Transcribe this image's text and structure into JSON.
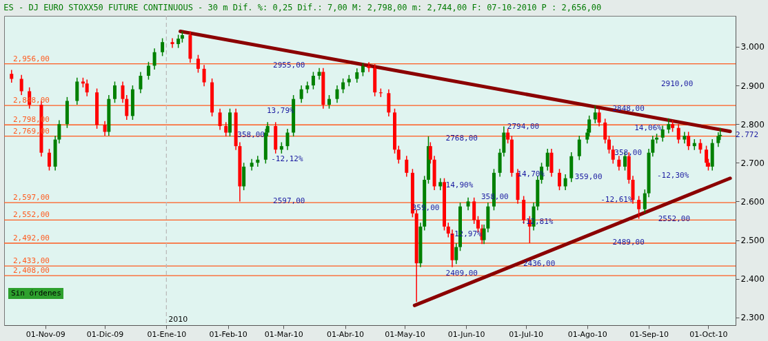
{
  "chart_data": {
    "type": "candlestick",
    "title": "ES - DJ EURO STOXX50 FUTURE CONTINUOUS -  30 m Dif. %: 0,25 Dif.: 7,00 M: 2,798,00 m: 2,744,00 F: 07-10-2010 P : 2,656,00",
    "x": [
      "2009-10-15",
      "2009-10-20",
      "2009-10-24",
      "2009-10-30",
      "2009-11-03",
      "2009-11-06",
      "2009-11-08",
      "2009-11-12",
      "2009-11-17",
      "2009-11-20",
      "2009-11-22",
      "2009-11-27",
      "2009-12-01",
      "2009-12-03",
      "2009-12-06",
      "2009-12-10",
      "2009-12-12",
      "2009-12-15",
      "2009-12-19",
      "2009-12-23",
      "2009-12-26",
      "2009-12-30",
      "2010-01-04",
      "2010-01-07",
      "2010-01-09",
      "2010-01-13",
      "2010-01-17",
      "2010-01-20",
      "2010-01-24",
      "2010-01-28",
      "2010-01-31",
      "2010-02-02",
      "2010-02-05",
      "2010-02-07",
      "2010-02-09",
      "2010-02-13",
      "2010-02-16",
      "2010-02-20",
      "2010-02-21",
      "2010-02-25",
      "2010-02-28",
      "2010-03-03",
      "2010-03-06",
      "2010-03-10",
      "2010-03-13",
      "2010-03-16",
      "2010-03-19",
      "2010-03-21",
      "2010-03-24",
      "2010-03-28",
      "2010-03-31",
      "2010-04-03",
      "2010-04-07",
      "2010-04-10",
      "2010-04-13",
      "2010-04-16",
      "2010-04-19",
      "2010-04-23",
      "2010-04-26",
      "2010-04-28",
      "2010-05-02",
      "2010-05-05",
      "2010-05-07",
      "2010-05-09",
      "2010-05-11",
      "2010-05-13",
      "2010-05-14",
      "2010-05-16",
      "2010-05-19",
      "2010-05-21",
      "2010-05-23",
      "2010-05-25",
      "2010-05-27",
      "2010-05-29",
      "2010-06-02",
      "2010-06-05",
      "2010-06-07",
      "2010-06-09",
      "2010-06-10",
      "2010-06-12",
      "2010-06-15",
      "2010-06-18",
      "2010-06-20",
      "2010-06-22",
      "2010-06-24",
      "2010-06-27",
      "2010-06-30",
      "2010-07-03",
      "2010-07-05",
      "2010-07-07",
      "2010-07-09",
      "2010-07-12",
      "2010-07-14",
      "2010-07-18",
      "2010-07-21",
      "2010-07-24",
      "2010-07-28",
      "2010-08-01",
      "2010-08-02",
      "2010-08-05",
      "2010-08-07",
      "2010-08-10",
      "2010-08-12",
      "2010-08-14",
      "2010-08-17",
      "2010-08-20",
      "2010-08-22",
      "2010-08-24",
      "2010-08-27",
      "2010-08-30",
      "2010-09-01",
      "2010-09-03",
      "2010-09-05",
      "2010-09-08",
      "2010-09-11",
      "2010-09-13",
      "2010-09-16",
      "2010-09-19",
      "2010-09-21",
      "2010-09-24",
      "2010-09-27",
      "2010-09-30",
      "2010-10-01",
      "2010-10-03",
      "2010-10-06",
      "2010-10-07"
    ],
    "ohlc": [
      [
        2930,
        2940,
        2907,
        2917
      ],
      [
        2917,
        2927,
        2875,
        2885
      ],
      [
        2885,
        2895,
        2840,
        2850
      ],
      [
        2850,
        2860,
        2716,
        2726
      ],
      [
        2726,
        2736,
        2680,
        2690
      ],
      [
        2690,
        2770,
        2680,
        2760
      ],
      [
        2760,
        2810,
        2750,
        2800
      ],
      [
        2800,
        2870,
        2790,
        2860
      ],
      [
        2860,
        2920,
        2850,
        2910
      ],
      [
        2910,
        2920,
        2895,
        2905
      ],
      [
        2905,
        2915,
        2872,
        2882
      ],
      [
        2882,
        2892,
        2788,
        2798
      ],
      [
        2798,
        2808,
        2770,
        2780
      ],
      [
        2780,
        2875,
        2770,
        2865
      ],
      [
        2865,
        2910,
        2855,
        2900
      ],
      [
        2900,
        2910,
        2855,
        2865
      ],
      [
        2865,
        2875,
        2811,
        2821
      ],
      [
        2821,
        2900,
        2811,
        2890
      ],
      [
        2890,
        2935,
        2880,
        2925
      ],
      [
        2925,
        2961,
        2915,
        2951
      ],
      [
        2951,
        2996,
        2941,
        2986
      ],
      [
        2986,
        3022,
        2976,
        3012
      ],
      [
        3012,
        3022,
        2997,
        3007
      ],
      [
        3007,
        3031,
        2997,
        3021
      ],
      [
        3021,
        3040,
        3011,
        3030
      ],
      [
        3030,
        3040,
        2959,
        2969
      ],
      [
        2969,
        2979,
        2933,
        2943
      ],
      [
        2943,
        2953,
        2898,
        2908
      ],
      [
        2908,
        2918,
        2820,
        2830
      ],
      [
        2830,
        2840,
        2785,
        2795
      ],
      [
        2795,
        2805,
        2768,
        2778
      ],
      [
        2778,
        2840,
        2768,
        2830
      ],
      [
        2830,
        2840,
        2733,
        2743
      ],
      [
        2743,
        2753,
        2600,
        2639
      ],
      [
        2639,
        2700,
        2629,
        2690
      ],
      [
        2690,
        2710,
        2680,
        2700
      ],
      [
        2700,
        2718,
        2690,
        2708
      ],
      [
        2708,
        2788,
        2698,
        2778
      ],
      [
        2778,
        2805,
        2768,
        2795
      ],
      [
        2795,
        2805,
        2724,
        2734
      ],
      [
        2734,
        2753,
        2724,
        2743
      ],
      [
        2743,
        2788,
        2733,
        2778
      ],
      [
        2778,
        2875,
        2768,
        2865
      ],
      [
        2865,
        2900,
        2855,
        2890
      ],
      [
        2890,
        2910,
        2880,
        2900
      ],
      [
        2900,
        2935,
        2890,
        2925
      ],
      [
        2925,
        2945,
        2915,
        2935
      ],
      [
        2935,
        2945,
        2840,
        2850
      ],
      [
        2850,
        2875,
        2840,
        2865
      ],
      [
        2865,
        2900,
        2855,
        2890
      ],
      [
        2890,
        2918,
        2880,
        2908
      ],
      [
        2908,
        2927,
        2898,
        2917
      ],
      [
        2917,
        2944,
        2907,
        2934
      ],
      [
        2934,
        2958,
        2924,
        2950
      ],
      [
        2950,
        2960,
        2935,
        2945
      ],
      [
        2945,
        2955,
        2872,
        2882
      ],
      [
        2882,
        2892,
        2870,
        2880
      ],
      [
        2880,
        2890,
        2820,
        2830
      ],
      [
        2830,
        2840,
        2724,
        2734
      ],
      [
        2734,
        2744,
        2698,
        2708
      ],
      [
        2708,
        2718,
        2664,
        2674
      ],
      [
        2674,
        2684,
        2559,
        2569
      ],
      [
        2569,
        2579,
        2340,
        2440
      ],
      [
        2440,
        2545,
        2430,
        2535
      ],
      [
        2535,
        2666,
        2525,
        2656
      ],
      [
        2656,
        2768,
        2646,
        2743
      ],
      [
        2743,
        2753,
        2698,
        2708
      ],
      [
        2708,
        2718,
        2629,
        2639
      ],
      [
        2639,
        2660,
        2629,
        2650
      ],
      [
        2650,
        2660,
        2525,
        2535
      ],
      [
        2535,
        2545,
        2507,
        2517
      ],
      [
        2517,
        2527,
        2430,
        2448
      ],
      [
        2448,
        2492,
        2438,
        2482
      ],
      [
        2482,
        2597,
        2472,
        2587
      ],
      [
        2587,
        2610,
        2577,
        2600
      ],
      [
        2600,
        2610,
        2542,
        2552
      ],
      [
        2552,
        2562,
        2520,
        2530
      ],
      [
        2530,
        2540,
        2490,
        2500
      ],
      [
        2500,
        2540,
        2490,
        2530
      ],
      [
        2530,
        2597,
        2520,
        2587
      ],
      [
        2587,
        2684,
        2577,
        2674
      ],
      [
        2674,
        2736,
        2664,
        2726
      ],
      [
        2726,
        2794,
        2716,
        2778
      ],
      [
        2778,
        2788,
        2750,
        2760
      ],
      [
        2760,
        2770,
        2664,
        2674
      ],
      [
        2674,
        2684,
        2594,
        2604
      ],
      [
        2604,
        2614,
        2542,
        2552
      ],
      [
        2552,
        2562,
        2492,
        2535
      ],
      [
        2535,
        2597,
        2525,
        2587
      ],
      [
        2587,
        2666,
        2577,
        2656
      ],
      [
        2656,
        2700,
        2646,
        2690
      ],
      [
        2690,
        2736,
        2680,
        2726
      ],
      [
        2726,
        2736,
        2664,
        2674
      ],
      [
        2674,
        2684,
        2629,
        2639
      ],
      [
        2639,
        2670,
        2629,
        2660
      ],
      [
        2660,
        2727,
        2650,
        2717
      ],
      [
        2717,
        2770,
        2707,
        2760
      ],
      [
        2760,
        2788,
        2750,
        2778
      ],
      [
        2778,
        2822,
        2768,
        2812
      ],
      [
        2812,
        2848,
        2802,
        2830
      ],
      [
        2830,
        2840,
        2794,
        2804
      ],
      [
        2804,
        2814,
        2750,
        2760
      ],
      [
        2760,
        2770,
        2724,
        2734
      ],
      [
        2734,
        2744,
        2698,
        2708
      ],
      [
        2708,
        2718,
        2680,
        2690
      ],
      [
        2690,
        2727,
        2680,
        2717
      ],
      [
        2717,
        2727,
        2646,
        2656
      ],
      [
        2656,
        2666,
        2594,
        2604
      ],
      [
        2604,
        2614,
        2555,
        2580
      ],
      [
        2580,
        2631,
        2570,
        2621
      ],
      [
        2621,
        2736,
        2611,
        2726
      ],
      [
        2726,
        2770,
        2716,
        2760
      ],
      [
        2760,
        2775,
        2750,
        2765
      ],
      [
        2765,
        2796,
        2755,
        2786
      ],
      [
        2786,
        2815,
        2776,
        2800
      ],
      [
        2800,
        2810,
        2780,
        2790
      ],
      [
        2790,
        2800,
        2750,
        2760
      ],
      [
        2760,
        2780,
        2750,
        2770
      ],
      [
        2770,
        2780,
        2733,
        2743
      ],
      [
        2743,
        2761,
        2733,
        2751
      ],
      [
        2751,
        2761,
        2724,
        2734
      ],
      [
        2734,
        2744,
        2690,
        2700
      ],
      [
        2700,
        2710,
        2680,
        2690
      ],
      [
        2690,
        2761,
        2680,
        2751
      ],
      [
        2751,
        2779,
        2741,
        2769
      ],
      [
        2769,
        2790,
        2759,
        2772
      ]
    ],
    "colors": [
      "#ff0000",
      "#ff0000",
      "#ff0000",
      "#ff0000",
      "#ff0000",
      "#008000",
      "#008000",
      "#008000",
      "#008000",
      "#ff0000",
      "#ff0000",
      "#ff0000",
      "#ff0000",
      "#008000",
      "#008000",
      "#ff0000",
      "#ff0000",
      "#008000",
      "#008000",
      "#008000",
      "#008000",
      "#008000",
      "#ff0000",
      "#008000",
      "#008000",
      "#ff0000",
      "#ff0000",
      "#ff0000",
      "#ff0000",
      "#ff0000",
      "#ff0000",
      "#008000",
      "#ff0000",
      "#ff0000",
      "#008000",
      "#008000",
      "#008000",
      "#008000",
      "#008000",
      "#ff0000",
      "#008000",
      "#008000",
      "#008000",
      "#008000",
      "#008000",
      "#008000",
      "#008000",
      "#ff0000",
      "#008000",
      "#008000",
      "#008000",
      "#008000",
      "#008000",
      "#008000",
      "#ff0000",
      "#ff0000",
      "#ff0000",
      "#ff0000",
      "#ff0000",
      "#ff0000",
      "#ff0000",
      "#ff0000",
      "#ff0000",
      "#008000",
      "#008000",
      "#008000",
      "#ff0000",
      "#ff0000",
      "#008000",
      "#ff0000",
      "#ff0000",
      "#ff0000",
      "#008000",
      "#008000",
      "#008000",
      "#ff0000",
      "#ff0000",
      "#ff0000",
      "#008000",
      "#008000",
      "#008000",
      "#008000",
      "#008000",
      "#ff0000",
      "#ff0000",
      "#ff0000",
      "#ff0000",
      "#ff0000",
      "#008000",
      "#008000",
      "#008000",
      "#008000",
      "#ff0000",
      "#ff0000",
      "#008000",
      "#008000",
      "#008000",
      "#008000",
      "#008000",
      "#008000",
      "#ff0000",
      "#ff0000",
      "#ff0000",
      "#ff0000",
      "#ff0000",
      "#008000",
      "#ff0000",
      "#ff0000",
      "#ff0000",
      "#008000",
      "#008000",
      "#008000",
      "#008000",
      "#008000",
      "#008000",
      "#ff0000",
      "#ff0000",
      "#008000",
      "#ff0000",
      "#008000",
      "#ff0000",
      "#ff0000",
      "#ff0000",
      "#008000",
      "#008000",
      "#008000"
    ],
    "series": [
      {
        "type": "line",
        "color": "#8b0000",
        "x": [
          "2010-01-08",
          "2010-10-12"
        ],
        "values": [
          3040,
          2781
        ]
      },
      {
        "type": "line",
        "color": "#8b0000",
        "x": [
          "2010-05-06",
          "2010-10-12"
        ],
        "values": [
          2331,
          2660
        ]
      }
    ],
    "ref_lines": [
      {
        "axis": "y",
        "value": 2956,
        "label": "2,956,00",
        "color": "#ff5a1e"
      },
      {
        "axis": "y",
        "value": 2848,
        "label": "2,848,00",
        "color": "#ff5a1e"
      },
      {
        "axis": "y",
        "value": 2798,
        "label": "2,798,00",
        "color": "#ff5a1e"
      },
      {
        "axis": "y",
        "value": 2769,
        "label": "2,769,00",
        "color": "#ff5a1e"
      },
      {
        "axis": "y",
        "value": 2597,
        "label": "2,597,00",
        "color": "#ff5a1e"
      },
      {
        "axis": "y",
        "value": 2552,
        "label": "2,552,00",
        "color": "#ff5a1e"
      },
      {
        "axis": "y",
        "value": 2492,
        "label": "2,492,00",
        "color": "#ff5a1e"
      },
      {
        "axis": "y",
        "value": 2433,
        "label": "2,433,00",
        "color": "#ff5a1e"
      },
      {
        "axis": "y",
        "value": 2408,
        "label": "2,408,00",
        "color": "#ff5a1e"
      },
      {
        "axis": "x",
        "value": "2010-01-01",
        "label": "2010",
        "color": "#bbbbbb",
        "line_style": "dashed"
      }
    ],
    "annotations": [
      {
        "text": "2955,00",
        "x": "2010-02-22",
        "y": 2951
      },
      "13,79%",
      {
        "text": "358,00",
        "x": "2010-02-04",
        "y": 2771
      },
      {
        "text": "-12,12%",
        "x": "2010-02-21",
        "y": 2710
      },
      {
        "text": "2597,00",
        "x": "2010-02-22",
        "y": 2600
      },
      {
        "text": "2768,00",
        "x": "2010-05-20",
        "y": 2762
      },
      {
        "text": "14,90%",
        "x": "2010-05-20",
        "y": 2642
      },
      {
        "text": "359,00",
        "x": "2010-05-03",
        "y": 2583
      },
      {
        "text": "-12,97%",
        "x": "2010-05-22",
        "y": 2516
      },
      {
        "text": "2409,00",
        "x": "2010-05-20",
        "y": 2413
      },
      {
        "text": "2794,00",
        "x": "2010-06-20",
        "y": 2794
      },
      {
        "text": "14,70%",
        "x": "2010-06-25",
        "y": 2670
      },
      "358,00",
      {
        "text": "-12,81%",
        "x": "2010-06-27",
        "y": 2548
      },
      {
        "text": "2436,00",
        "x": "2010-06-28",
        "y": 2439
      },
      {
        "text": "359,00",
        "x": "2010-07-24",
        "y": 2663
      },
      {
        "text": "2848,00",
        "x": "2010-08-12",
        "y": 2840
      },
      {
        "text": "358,00",
        "x": "2010-08-13",
        "y": 2726
      },
      {
        "text": "-12,61%",
        "x": "2010-08-06",
        "y": 2604
      },
      {
        "text": "2489,00",
        "x": "2010-08-12",
        "y": 2494
      },
      "2910,00",
      {
        "text": "14,06%",
        "x": "2010-08-23",
        "y": 2790
      },
      "-12,30%",
      {
        "text": "2552,00",
        "x": "2010-09-04",
        "y": 2555
      },
      {
        "text": "2.772",
        "x": "2010-10-13",
        "y": 2772
      },
      "Sin órdenes"
    ],
    "xlim": [
      "2009-10-13",
      "2010-10-13"
    ],
    "ylim": [
      2280,
      3080
    ],
    "xticks": [
      {
        "value": "2009-11-01",
        "label": "01-Nov-09"
      },
      {
        "value": "2009-12-01",
        "label": "01-Dic-09"
      },
      {
        "value": "2010-01-01",
        "label": "01-Ene-10"
      },
      {
        "value": "2010-02-01",
        "label": "01-Feb-10"
      },
      {
        "value": "2010-03-01",
        "label": "01-Mar-10"
      },
      {
        "value": "2010-04-01",
        "label": "01-Abr-10"
      },
      {
        "value": "2010-05-01",
        "label": "01-May-10"
      },
      {
        "value": "2010-06-01",
        "label": "01-Jun-10"
      },
      {
        "value": "2010-07-01",
        "label": "01-Jul-10"
      },
      {
        "value": "2010-08-01",
        "label": "01-Ago-10"
      },
      {
        "value": "2010-09-01",
        "label": "01-Sep-10"
      },
      {
        "value": "2010-10-01",
        "label": "01-Oct-10"
      }
    ],
    "yticks": [
      {
        "value": 2300,
        "label": "2.300"
      },
      {
        "value": 2400,
        "label": "2.400"
      },
      {
        "value": 2500,
        "label": "2.500"
      },
      {
        "value": 2600,
        "label": "2.600"
      },
      {
        "value": 2700,
        "label": "2.700"
      },
      {
        "value": 2800,
        "label": "2.800"
      },
      {
        "value": 2900,
        "label": "2.900"
      },
      {
        "value": 3000,
        "label": "3.000"
      }
    ],
    "grid": false
  }
}
